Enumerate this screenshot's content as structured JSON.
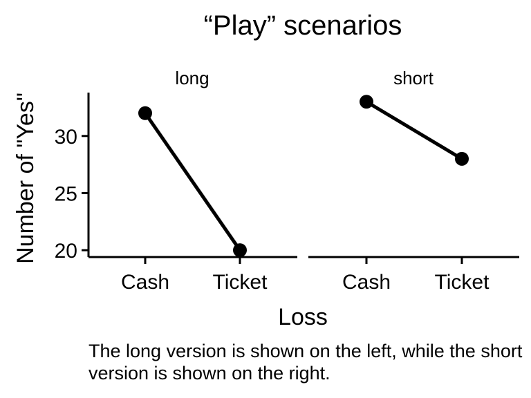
{
  "chart_data": {
    "type": "line",
    "title": "“Play” scenarios",
    "xlabel": "Loss",
    "ylabel": "Number of \"Yes\"",
    "ylim": [
      19.4,
      33.8
    ],
    "yticks": [
      20,
      25,
      30
    ],
    "grid": false,
    "panels": [
      {
        "label": "long",
        "categories": [
          "Cash",
          "Ticket"
        ],
        "values": [
          32,
          20
        ]
      },
      {
        "label": "short",
        "categories": [
          "Cash",
          "Ticket"
        ],
        "values": [
          33,
          28
        ]
      }
    ]
  },
  "caption": "The long version is shown on the left, while the short version is shown on the right."
}
